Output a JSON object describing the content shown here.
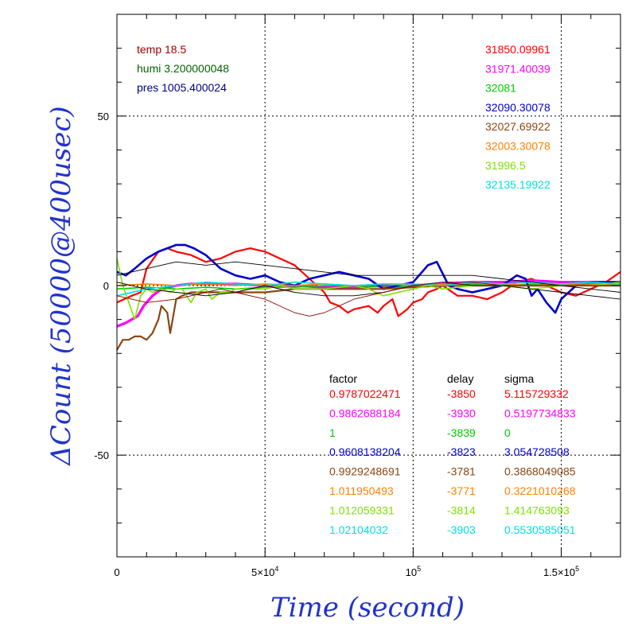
{
  "chart_data": {
    "type": "line",
    "xlabel": "Time (second)",
    "ylabel": "ΔCount (50000@400usec)",
    "xlim": [
      0,
      170000
    ],
    "ylim": [
      -80,
      80
    ],
    "grid": true,
    "xticks": [
      {
        "value": 0,
        "label": "0"
      },
      {
        "value": 50000,
        "label": "5×10",
        "exp": "4"
      },
      {
        "value": 100000,
        "label": "10",
        "exp": "5"
      },
      {
        "value": 150000,
        "label": "1.5×10",
        "exp": "5"
      }
    ],
    "yticks": [
      {
        "value": 50,
        "label": "50"
      },
      {
        "value": 0,
        "label": "0"
      },
      {
        "value": -50,
        "label": "-50"
      }
    ],
    "env": [
      {
        "text": "temp 18.5",
        "color": "#a00000"
      },
      {
        "text": "humi 3.200000048",
        "color": "#006400"
      },
      {
        "text": "pres 1005.400024",
        "color": "#000080"
      }
    ],
    "means": [
      {
        "text": "31850.09961",
        "color": "#ff0000"
      },
      {
        "text": "31971.40039",
        "color": "#ff00ff"
      },
      {
        "text": "32081",
        "color": "#00cc00"
      },
      {
        "text": "32090.30078",
        "color": "#0000cc"
      },
      {
        "text": "32027.69922",
        "color": "#8b4513"
      },
      {
        "text": "32003.30078",
        "color": "#ff8000"
      },
      {
        "text": "31996.5",
        "color": "#80e000"
      },
      {
        "text": "32135.19922",
        "color": "#00e0e0"
      }
    ],
    "table_headers": [
      "factor",
      "delay",
      "sigma"
    ],
    "table_rows": [
      {
        "factor": "0.9787022471",
        "delay": "-3850",
        "sigma": "5.115729332",
        "color": "#ff0000"
      },
      {
        "factor": "0.9862688184",
        "delay": "-3930",
        "sigma": "0.5197734833",
        "color": "#ff00ff"
      },
      {
        "factor": "1",
        "delay": "-3839",
        "sigma": "0",
        "color": "#00cc00"
      },
      {
        "factor": "0.9608138204",
        "delay": "-3823",
        "sigma": "3.054728508",
        "color": "#0000cc"
      },
      {
        "factor": "0.9929248691",
        "delay": "-3781",
        "sigma": "0.3868049085",
        "color": "#8b4513"
      },
      {
        "factor": "1.011950493",
        "delay": "-3771",
        "sigma": "0.3221010268",
        "color": "#ff8000"
      },
      {
        "factor": "1.012059331",
        "delay": "-3814",
        "sigma": "1.414763093",
        "color": "#80e000"
      },
      {
        "factor": "1.02104032",
        "delay": "-3903",
        "sigma": "0.5530585051",
        "color": "#00e0e0"
      }
    ],
    "series": [
      {
        "color": "#ff0000",
        "width": 2.2,
        "x": [
          0,
          5000,
          8000,
          10000,
          14000,
          17000,
          20000,
          25000,
          30000,
          35000,
          40000,
          45000,
          50000,
          55000,
          60000,
          65000,
          70000,
          72000,
          75000,
          78000,
          80000,
          85000,
          88000,
          90000,
          93000,
          95000,
          98000,
          100000,
          103000,
          105000,
          108000,
          110000,
          115000,
          120000,
          125000,
          130000,
          135000,
          140000,
          145000,
          150000,
          155000,
          160000,
          165000,
          170000
        ],
        "y": [
          -5,
          -3,
          -2,
          5,
          10,
          11,
          10,
          9,
          7,
          8,
          10,
          11,
          10,
          8,
          6,
          2,
          -2,
          -5,
          -6,
          -8,
          -7,
          -6,
          -8,
          -6,
          -4,
          -9,
          -7,
          -5,
          -4,
          -2,
          -1,
          0,
          -3,
          -3,
          -4,
          -2,
          1,
          2,
          0,
          -2,
          -3,
          -1,
          1,
          4
        ]
      },
      {
        "color": "#ff00ff",
        "width": 3.2,
        "x": [
          0,
          3000,
          5000,
          7000,
          9000,
          12000,
          15000,
          20000,
          25000,
          30000,
          40000,
          50000,
          60000,
          70000,
          80000,
          90000,
          100000,
          110000,
          120000,
          130000,
          140000,
          150000,
          160000,
          170000
        ],
        "y": [
          -12,
          -11,
          -10,
          -9,
          -6,
          -3,
          -1,
          0,
          0.5,
          0.5,
          0.5,
          0,
          0,
          -0.5,
          -0.5,
          0,
          0,
          0.5,
          1,
          1,
          1.5,
          1,
          1,
          1
        ]
      },
      {
        "color": "#00cc00",
        "width": 1.6,
        "x": [
          0,
          10000,
          20000,
          30000,
          40000,
          50000,
          60000,
          70000,
          80000,
          90000,
          100000,
          110000,
          120000,
          130000,
          140000,
          150000,
          160000,
          170000
        ],
        "y": [
          -1,
          -0.5,
          -1,
          -0.5,
          -1,
          -0.5,
          -0.5,
          0,
          0,
          -0.5,
          0,
          0,
          0.5,
          0,
          0.5,
          0,
          0.5,
          0.5
        ]
      },
      {
        "color": "#0000cc",
        "width": 2.6,
        "x": [
          0,
          3000,
          6000,
          10000,
          14000,
          17000,
          20000,
          23000,
          26000,
          30000,
          35000,
          40000,
          45000,
          50000,
          55000,
          60000,
          65000,
          70000,
          75000,
          80000,
          85000,
          90000,
          95000,
          100000,
          105000,
          108000,
          112000,
          115000,
          120000,
          125000,
          130000,
          135000,
          138000,
          140000,
          142000,
          145000,
          148000,
          150000,
          155000,
          160000,
          165000,
          170000
        ],
        "y": [
          4,
          3,
          5,
          8,
          10,
          11,
          12,
          12,
          11,
          9,
          5,
          3,
          2,
          3,
          1,
          0,
          2,
          3,
          4,
          3,
          2,
          -1,
          0,
          1,
          6,
          7,
          0,
          -1,
          -2,
          -1,
          0,
          3,
          2,
          -3,
          -1,
          -5,
          -8,
          -4,
          0,
          1,
          1,
          1
        ]
      },
      {
        "color": "#8b4513",
        "width": 2.2,
        "x": [
          0,
          2000,
          4000,
          6000,
          8000,
          10000,
          12000,
          14000,
          15000,
          16000,
          17000,
          18000,
          20000,
          22000,
          25000,
          30000,
          40000,
          50000,
          60000,
          70000,
          80000,
          90000,
          100000,
          110000,
          120000,
          130000,
          140000,
          150000,
          160000,
          170000
        ],
        "y": [
          -19,
          -16,
          -16,
          -15,
          -15,
          -16,
          -14,
          -10,
          -6,
          -7,
          -8,
          -14,
          -4,
          -3,
          -2,
          -2,
          -2,
          -2,
          -1,
          -1,
          -1,
          -1,
          -0.5,
          0,
          0,
          0,
          0,
          0,
          0,
          0
        ]
      },
      {
        "color": "#ff8000",
        "width": 1.6,
        "x": [
          0,
          10000,
          20000,
          30000,
          40000,
          50000,
          60000,
          70000,
          80000,
          90000,
          100000,
          110000,
          120000,
          130000,
          140000,
          150000,
          160000,
          170000
        ],
        "y": [
          0,
          0.5,
          0,
          0.5,
          0,
          0.5,
          0,
          0.5,
          0,
          0.5,
          0,
          0.5,
          0,
          0.5,
          0,
          0.5,
          0.5,
          0
        ]
      },
      {
        "color": "#80e000",
        "width": 1.6,
        "x": [
          0,
          2000,
          4000,
          6000,
          8000,
          10000,
          12000,
          15000,
          18000,
          20000,
          22000,
          25000,
          27000,
          30000,
          32000,
          35000,
          38000,
          40000,
          45000,
          50000,
          55000,
          60000,
          70000,
          80000,
          85000,
          90000,
          95000,
          100000,
          105000,
          110000,
          120000,
          130000,
          140000,
          150000,
          160000,
          170000
        ],
        "y": [
          8,
          0,
          -5,
          -10,
          -3,
          -1,
          -2,
          -1,
          -2,
          -1,
          -1,
          -5,
          -2,
          -1,
          -4,
          -2,
          -2,
          -1,
          -1,
          -1,
          0,
          -1,
          -1,
          0,
          -1,
          -3,
          -2,
          -1,
          0,
          -1,
          0,
          0,
          -1,
          0,
          0,
          1
        ]
      },
      {
        "color": "#00e0e0",
        "width": 1.6,
        "x": [
          0,
          10000,
          20000,
          30000,
          40000,
          50000,
          60000,
          70000,
          80000,
          90000,
          100000,
          110000,
          120000,
          130000,
          140000,
          150000,
          160000,
          170000
        ],
        "y": [
          -3,
          -1,
          0,
          1,
          0.5,
          0,
          1,
          0.5,
          0,
          0.5,
          0.5,
          0,
          1,
          0.5,
          1,
          0.5,
          1,
          0.5
        ]
      },
      {
        "color": "#000000",
        "width": 0.9,
        "x": [
          0,
          10000,
          20000,
          30000,
          40000,
          50000,
          60000,
          70000,
          80000,
          90000,
          100000,
          110000,
          120000,
          130000,
          140000,
          150000,
          160000,
          170000
        ],
        "y": [
          3,
          5,
          7,
          6,
          7,
          6,
          5,
          4,
          3,
          3,
          3,
          3,
          3,
          2,
          1,
          0,
          -1,
          -2
        ]
      },
      {
        "color": "#000000",
        "width": 0.9,
        "x": [
          0,
          10000,
          20000,
          30000,
          40000,
          50000,
          60000,
          70000,
          80000,
          90000,
          100000,
          110000,
          120000,
          130000,
          140000,
          150000,
          160000,
          170000
        ],
        "y": [
          1,
          -1,
          -2,
          -3,
          -2,
          0,
          -2,
          -3,
          -3,
          -2,
          0,
          1,
          0,
          0,
          -1,
          -2,
          -3,
          -4
        ]
      },
      {
        "color": "#8b0000",
        "width": 0.9,
        "x": [
          0,
          10000,
          20000,
          30000,
          35000,
          40000,
          45000,
          50000,
          55000,
          60000,
          65000,
          70000,
          75000,
          80000,
          85000,
          90000,
          100000,
          110000,
          120000,
          130000,
          140000,
          150000,
          160000,
          170000
        ],
        "y": [
          -3,
          -5,
          -4,
          -2,
          -1,
          -2,
          -3,
          -4,
          -6,
          -8,
          -9,
          -8,
          -6,
          -4,
          -3,
          -2,
          0,
          1,
          1,
          0,
          0,
          0,
          0,
          0
        ]
      }
    ]
  }
}
